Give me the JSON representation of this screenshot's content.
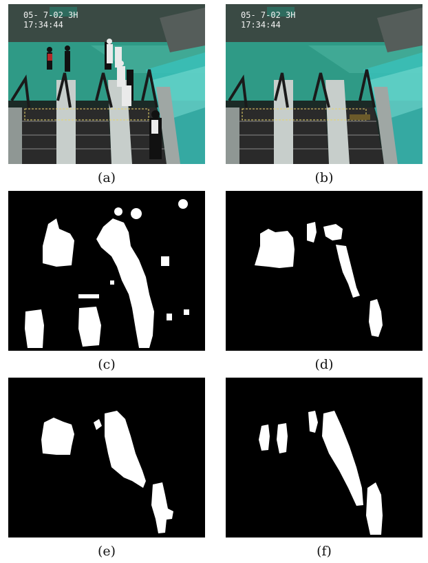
{
  "figure": {
    "panels": [
      {
        "id": "a",
        "caption": "(a)",
        "kind": "camera-frame",
        "osd_line1": "05- 7-02   3H",
        "osd_line2": "17:34:44"
      },
      {
        "id": "b",
        "caption": "(b)",
        "kind": "camera-frame-background",
        "osd_line1": "05- 7-02   3H",
        "osd_line2": "17:34:44"
      },
      {
        "id": "c",
        "caption": "(c)",
        "kind": "binary-mask"
      },
      {
        "id": "d",
        "caption": "(d)",
        "kind": "binary-mask"
      },
      {
        "id": "e",
        "caption": "(e)",
        "kind": "binary-mask"
      },
      {
        "id": "f",
        "caption": "(f)",
        "kind": "binary-mask"
      }
    ]
  },
  "colors": {
    "mask_background": "#000000",
    "mask_foreground": "#ffffff",
    "floor": "#2f9a86",
    "glass": "#39c0b8",
    "escalator_steps": "#2a2a2a"
  }
}
